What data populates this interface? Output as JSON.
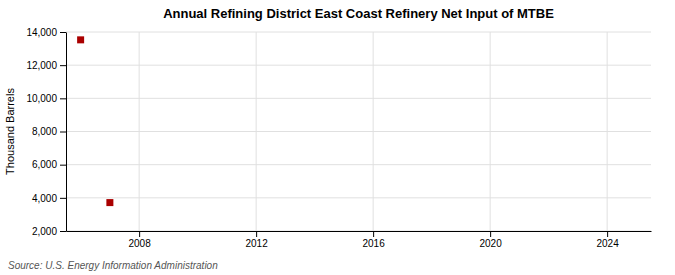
{
  "chart_data": {
    "type": "scatter",
    "title": "Annual Refining District East Coast Refinery Net Input of MTBE",
    "ylabel": "Thousand Barrels",
    "annotations": [
      "Source: U.S. Energy Information Administration"
    ],
    "x": [
      2006,
      2007
    ],
    "values": [
      13527,
      3713
    ],
    "color": "#aa0000",
    "marker": "square",
    "xlim": [
      2005.5,
      2025.5
    ],
    "xticks": [
      2008,
      2012,
      2016,
      2020,
      2024
    ],
    "ylim": [
      2000,
      14000
    ],
    "yticks": [
      {
        "value": 2000,
        "label": "2,000"
      },
      {
        "value": 4000,
        "label": "4,000"
      },
      {
        "value": 6000,
        "label": "6,000"
      },
      {
        "value": 8000,
        "label": "8,000"
      },
      {
        "value": 10000,
        "label": "10,000"
      },
      {
        "value": 12000,
        "label": "12,000"
      },
      {
        "value": 14000,
        "label": "14,000"
      }
    ],
    "grid": true
  }
}
